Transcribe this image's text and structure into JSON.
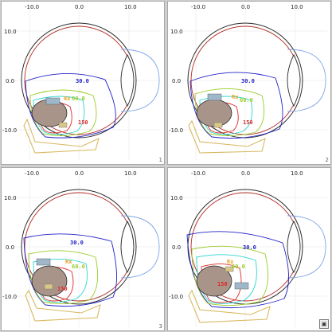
{
  "axis_ticks": {
    "x": [
      "-10.0",
      "0.0",
      "10.0"
    ],
    "y": [
      "10.0",
      "0.0",
      "-10.0"
    ]
  },
  "isodose": {
    "d30": "30.0",
    "d60": "60.0",
    "d150": "150",
    "rx": "Rx"
  },
  "colors": {
    "eye_outline": "#2b2b2b",
    "sclera_red": "#b22a22",
    "cornea_blue": "#7fa6e8",
    "iso30": "#2323c8",
    "iso60": "#9bcc2a",
    "iso_rx": "#e8a020",
    "iso_cyan": "#2ad6d0",
    "iso150": "#e02828",
    "tumor": "#a89488",
    "plaque": "#d8b860"
  },
  "panels": [
    {
      "number": "1"
    },
    {
      "number": "2"
    },
    {
      "number": "3"
    },
    {
      "number": "4"
    }
  ],
  "corner_button": {
    "label": "▣"
  }
}
